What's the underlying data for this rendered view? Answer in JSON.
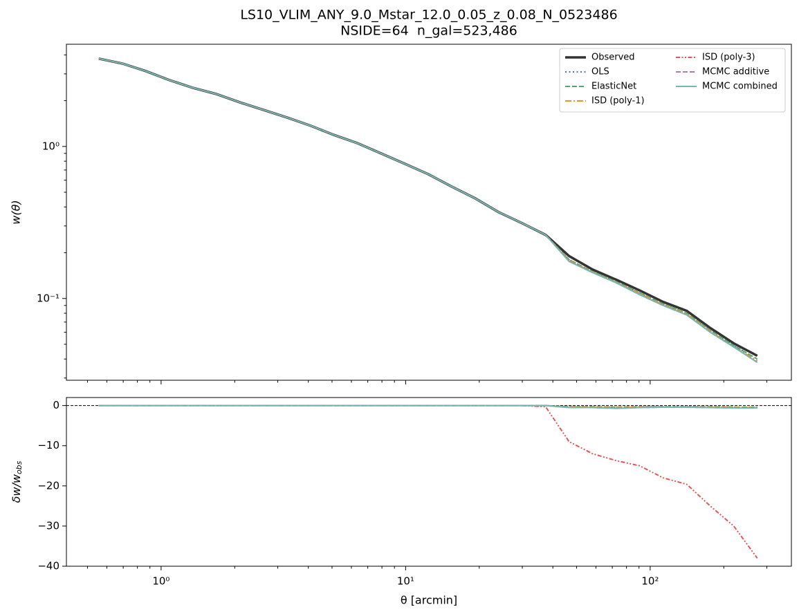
{
  "chart_data": [
    {
      "type": "line",
      "title": [
        "LS10_VLIM_ANY_9.0_Mstar_12.0_0.05_z_0.08_N_0523486",
        "NSIDE=64  n_gal=523,486"
      ],
      "ylabel": "w(θ)",
      "xlog": true,
      "ylog": true,
      "xlim": [
        0.41,
        378
      ],
      "ylim": [
        0.029,
        4.7
      ],
      "xticks": [
        {
          "value": 1,
          "label": "10⁰"
        },
        {
          "value": 10,
          "label": "10¹"
        },
        {
          "value": 100,
          "label": "10²"
        }
      ],
      "xminorticks": [
        0.5,
        0.6,
        0.7,
        0.8,
        0.9,
        2,
        3,
        4,
        5,
        6,
        7,
        8,
        9,
        20,
        30,
        40,
        50,
        60,
        70,
        80,
        90,
        200,
        300
      ],
      "yticks": [
        {
          "value": 0.1,
          "label": "10⁻¹"
        },
        {
          "value": 1,
          "label": "10⁰"
        }
      ],
      "yminorticks": [
        0.03,
        0.04,
        0.05,
        0.06,
        0.07,
        0.08,
        0.09,
        0.2,
        0.3,
        0.4,
        0.5,
        0.6,
        0.7,
        0.8,
        0.9,
        2,
        3,
        4
      ],
      "legend": "upper right",
      "x": [
        0.556,
        0.694,
        0.866,
        1.081,
        1.349,
        1.684,
        2.101,
        2.621,
        3.272,
        4.082,
        5.093,
        6.357,
        7.932,
        9.9,
        12.35,
        15.41,
        19.23,
        23.99,
        29.94,
        37.36,
        46.63,
        58.2,
        72.6,
        90.6,
        113.0,
        141.1,
        176.1,
        219.7,
        274.2
      ],
      "series": [
        {
          "name": "Observed",
          "color": "#333333",
          "linestyle": "solid",
          "width": 3.5,
          "values": [
            3.78,
            3.51,
            3.13,
            2.73,
            2.43,
            2.21,
            1.95,
            1.74,
            1.55,
            1.37,
            1.19,
            1.05,
            0.9,
            0.77,
            0.658,
            0.545,
            0.456,
            0.37,
            0.313,
            0.262,
            0.19,
            0.155,
            0.133,
            0.113,
            0.095,
            0.083,
            0.064,
            0.0507,
            0.042
          ]
        },
        {
          "name": "OLS",
          "color": "#4c72b0",
          "linestyle": "dotted",
          "width": 2,
          "values": [
            3.78,
            3.51,
            3.13,
            2.73,
            2.43,
            2.21,
            1.95,
            1.74,
            1.55,
            1.37,
            1.19,
            1.05,
            0.9,
            0.77,
            0.658,
            0.545,
            0.456,
            0.37,
            0.313,
            0.262,
            0.18,
            0.15,
            0.129,
            0.109,
            0.092,
            0.08,
            0.062,
            0.049,
            0.04
          ]
        },
        {
          "name": "ElasticNet",
          "color": "#55a868",
          "linestyle": "dashed",
          "width": 2,
          "values": [
            3.78,
            3.51,
            3.13,
            2.73,
            2.43,
            2.21,
            1.95,
            1.74,
            1.55,
            1.37,
            1.19,
            1.05,
            0.9,
            0.77,
            0.658,
            0.545,
            0.456,
            0.37,
            0.313,
            0.262,
            0.18,
            0.15,
            0.129,
            0.109,
            0.092,
            0.08,
            0.062,
            0.049,
            0.04
          ]
        },
        {
          "name": "ISD (poly-1)",
          "color": "#f28e2b",
          "linestyle": "dashdot",
          "width": 2,
          "values": [
            3.78,
            3.51,
            3.13,
            2.73,
            2.43,
            2.21,
            1.95,
            1.74,
            1.55,
            1.37,
            1.19,
            1.05,
            0.9,
            0.77,
            0.658,
            0.545,
            0.456,
            0.37,
            0.313,
            0.262,
            0.178,
            0.149,
            0.128,
            0.108,
            0.091,
            0.079,
            0.061,
            0.048,
            0.039
          ]
        },
        {
          "name": "ISD (poly-3)",
          "color": "#e15759",
          "linestyle": "dashdotdot",
          "width": 2,
          "values": [
            3.78,
            3.51,
            3.13,
            2.73,
            2.43,
            2.21,
            1.95,
            1.74,
            1.55,
            1.37,
            1.19,
            1.05,
            0.9,
            0.77,
            0.658,
            0.545,
            0.456,
            0.37,
            0.313,
            0.262,
            0.176,
            0.148,
            0.127,
            0.106,
            0.09,
            0.078,
            0.06,
            0.048,
            0.038
          ]
        },
        {
          "name": "MCMC additive",
          "color": "#b07aa1",
          "linestyle": "dashed",
          "width": 2,
          "values": [
            3.78,
            3.51,
            3.13,
            2.73,
            2.43,
            2.21,
            1.95,
            1.74,
            1.55,
            1.37,
            1.19,
            1.05,
            0.9,
            0.77,
            0.658,
            0.545,
            0.456,
            0.37,
            0.313,
            0.262,
            0.176,
            0.148,
            0.127,
            0.106,
            0.09,
            0.078,
            0.06,
            0.048,
            0.038
          ]
        },
        {
          "name": "MCMC combined",
          "color": "#76b7b2",
          "linestyle": "solid",
          "width": 2,
          "values": [
            3.78,
            3.51,
            3.13,
            2.73,
            2.43,
            2.21,
            1.95,
            1.74,
            1.55,
            1.37,
            1.19,
            1.05,
            0.9,
            0.77,
            0.658,
            0.545,
            0.456,
            0.37,
            0.313,
            0.262,
            0.175,
            0.148,
            0.127,
            0.106,
            0.09,
            0.078,
            0.06,
            0.048,
            0.038
          ]
        }
      ]
    },
    {
      "type": "line",
      "xlabel": "θ [arcmin]",
      "ylabel": "δw/w_obs",
      "xlog": true,
      "ylog": false,
      "xlim": [
        0.41,
        378
      ],
      "ylim": [
        -40,
        2
      ],
      "xticks": [
        {
          "value": 1,
          "label": "10⁰"
        },
        {
          "value": 10,
          "label": "10¹"
        },
        {
          "value": 100,
          "label": "10²"
        }
      ],
      "xminorticks": [
        0.5,
        0.6,
        0.7,
        0.8,
        0.9,
        2,
        3,
        4,
        5,
        6,
        7,
        8,
        9,
        20,
        30,
        40,
        50,
        60,
        70,
        80,
        90,
        200,
        300
      ],
      "yticks": [
        {
          "value": -40,
          "label": "−40"
        },
        {
          "value": -30,
          "label": "−30"
        },
        {
          "value": -20,
          "label": "−20"
        },
        {
          "value": -10,
          "label": "−10"
        },
        0
      ],
      "hline": 0,
      "x": [
        0.556,
        0.694,
        0.866,
        1.081,
        1.349,
        1.684,
        2.101,
        2.621,
        3.272,
        4.082,
        5.093,
        6.357,
        7.932,
        9.9,
        12.35,
        15.41,
        19.23,
        23.99,
        29.94,
        37.36,
        46.63,
        58.2,
        72.6,
        90.6,
        113.0,
        141.1,
        176.1,
        219.7,
        274.2
      ],
      "series": [
        {
          "name": "OLS",
          "color": "#4c72b0",
          "linestyle": "dotted",
          "width": 2,
          "values": [
            0,
            0,
            0,
            0,
            0,
            0,
            0,
            0,
            0,
            0,
            0,
            0,
            0,
            0,
            0,
            0,
            0,
            0,
            0,
            0,
            -0.3,
            -0.3,
            -0.4,
            -0.3,
            -0.3,
            -0.3,
            -0.3,
            -0.4,
            -0.4
          ]
        },
        {
          "name": "ElasticNet",
          "color": "#55a868",
          "linestyle": "dashed",
          "width": 2,
          "values": [
            0,
            0,
            0,
            0,
            0,
            0,
            0,
            0,
            0,
            0,
            0,
            0,
            0,
            0,
            0,
            0,
            0,
            0,
            0,
            0,
            -0.3,
            -0.3,
            -0.4,
            -0.3,
            -0.3,
            -0.3,
            -0.3,
            -0.4,
            -0.4
          ]
        },
        {
          "name": "ISD (poly-1)",
          "color": "#f28e2b",
          "linestyle": "dashdot",
          "width": 2,
          "values": [
            0,
            0,
            0,
            0,
            0,
            0,
            0,
            0,
            0,
            0,
            0,
            0,
            0,
            0,
            0,
            0,
            0,
            0,
            0,
            0,
            -0.4,
            -0.4,
            -0.5,
            -0.4,
            -0.4,
            -0.4,
            -0.4,
            -0.5,
            -0.5
          ]
        },
        {
          "name": "ISD (poly-3)",
          "color": "#e15759",
          "linestyle": "dashdotdot",
          "width": 2,
          "values": [
            0,
            0,
            0,
            0,
            0,
            0,
            0,
            0,
            0,
            0,
            0,
            0,
            0,
            0,
            0,
            0,
            0,
            0,
            0,
            -0.3,
            -9,
            -12,
            -13.7,
            -15,
            -18,
            -19.6,
            -25,
            -30,
            -38
          ]
        },
        {
          "name": "MCMC additive",
          "color": "#b07aa1",
          "linestyle": "dashed",
          "width": 2,
          "values": [
            0,
            0,
            0,
            0,
            0,
            0,
            0,
            0,
            0,
            0,
            0,
            0,
            0,
            0,
            0,
            0,
            0,
            0,
            0,
            0,
            -0.5,
            -0.5,
            -0.7,
            -0.5,
            -0.4,
            -0.4,
            -0.5,
            -0.6,
            -0.6
          ]
        },
        {
          "name": "MCMC combined",
          "color": "#76b7b2",
          "linestyle": "solid",
          "width": 2,
          "values": [
            0,
            0,
            0,
            0,
            0,
            0,
            0,
            0,
            0,
            0,
            0,
            0,
            0,
            0,
            0,
            0,
            0,
            0,
            0,
            0,
            -0.5,
            -0.5,
            -0.7,
            -0.5,
            -0.4,
            -0.4,
            -0.5,
            -0.6,
            -0.6
          ]
        }
      ]
    }
  ]
}
